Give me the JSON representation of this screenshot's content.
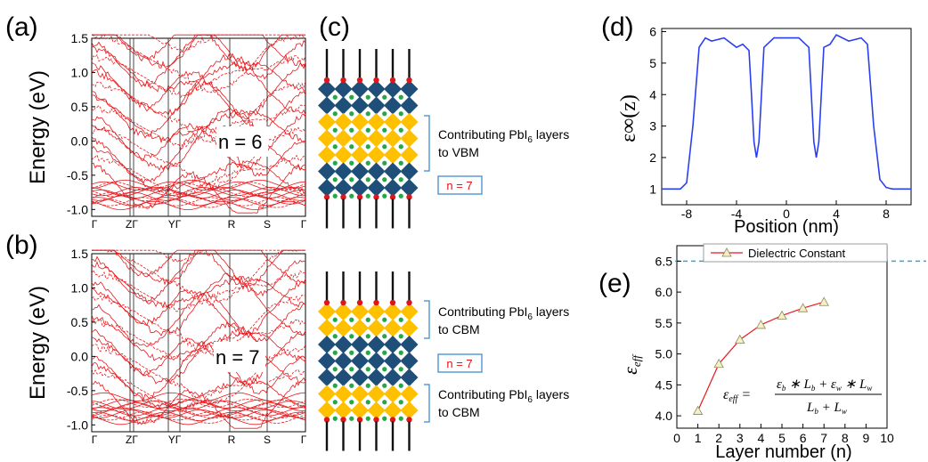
{
  "colors": {
    "band": "#e8191d",
    "blue": "#2a3ff0",
    "navy": "#1f4e79",
    "gold": "#ffc000",
    "green": "#24a847",
    "red_atom": "#e0151a",
    "teal": "#3aa3c8",
    "box": "#5b9bd5"
  },
  "panel_a": {
    "label": "(a)",
    "ylabel": "Energy (eV)",
    "annotation": "n = 6",
    "yticks": [
      "1.5",
      "1.0",
      "0.5",
      "0.0",
      "-0.5",
      "-1.0"
    ],
    "kpoints": [
      "Γ",
      "ZΓ",
      "YΓ",
      "R",
      "S",
      "Γ"
    ]
  },
  "panel_b": {
    "label": "(b)",
    "ylabel": "Energy (eV)",
    "annotation": "n = 7",
    "yticks": [
      "1.5",
      "1.0",
      "0.5",
      "0.0",
      "-0.5",
      "-1.0"
    ],
    "kpoints": [
      "Γ",
      "ZΓ",
      "YΓ",
      "R",
      "S",
      "Γ"
    ]
  },
  "panel_c": {
    "label": "(c)",
    "top": {
      "text": "Contributing PbI",
      "sub": "6",
      "suffix": " layers",
      "line2": "to VBM",
      "n_label": "n = 7"
    },
    "bottom": {
      "text1": "Contributing PbI",
      "sub1": "6",
      "suffix1": " layers",
      "line1b": "to CBM",
      "n_label": "n = 7",
      "text2": "Contributing PbI",
      "sub2": "6",
      "suffix2": " layers",
      "line2b": "to CBM"
    }
  },
  "panel_d": {
    "label": "(d)",
    "ylabel": "ε∞(z)",
    "xlabel": "Position (nm)",
    "xticks": [
      "-8",
      "-4",
      "0",
      "4",
      "8"
    ],
    "yticks": [
      "1",
      "2",
      "3",
      "4",
      "5",
      "6"
    ]
  },
  "panel_e": {
    "label": "(e)",
    "legend": "Dielectric Constant",
    "ylabel": "ε_eff",
    "xlabel": "Layer number (n)",
    "xticks": [
      "0",
      "1",
      "2",
      "3",
      "4",
      "5",
      "6",
      "7",
      "8",
      "9",
      "10"
    ],
    "yticks": [
      "4.0",
      "4.5",
      "5.0",
      "5.5",
      "6.0",
      "6.5"
    ],
    "formula_lhs": "εeff =",
    "formula_num": "εb * Lb + εw * Lw",
    "formula_den": "Lb + Lw"
  },
  "chart_data": [
    {
      "type": "line",
      "title": "",
      "xlabel": "Position (nm)",
      "ylabel": "ε∞(z)",
      "xlim": [
        -10,
        10
      ],
      "ylim": [
        0.5,
        6.1
      ],
      "series": [
        {
          "x": [
            -10,
            -8.5,
            -8,
            -7.5,
            -7,
            -6.5,
            -6,
            -5,
            -4,
            -3.5,
            -3,
            -2.8,
            -2.6,
            -2.4,
            -2.2,
            -2,
            -1.8,
            -1,
            0,
            1,
            1.8,
            2,
            2.2,
            2.4,
            2.6,
            2.8,
            3,
            3.5,
            4,
            5,
            6,
            6.5,
            7,
            7.5,
            8,
            8.5,
            10
          ],
          "y": [
            1,
            1,
            1.2,
            3,
            5.5,
            5.8,
            5.7,
            5.8,
            5.5,
            5.6,
            5.4,
            4,
            2.5,
            2,
            2.5,
            4,
            5.5,
            5.8,
            5.8,
            5.8,
            5.5,
            4,
            2.5,
            2,
            2.5,
            4,
            5.5,
            5.6,
            5.9,
            5.7,
            5.8,
            5.6,
            3,
            1.3,
            1.05,
            1,
            1
          ]
        }
      ]
    },
    {
      "type": "line",
      "title": "",
      "xlabel": "Layer number (n)",
      "ylabel": "ε_eff",
      "xlim": [
        0,
        10
      ],
      "ylim": [
        3.8,
        6.75
      ],
      "reference_line": 6.5,
      "series": [
        {
          "name": "Dielectric Constant",
          "x": [
            1,
            2,
            3,
            4,
            5,
            6,
            7
          ],
          "y": [
            4.08,
            4.84,
            5.23,
            5.47,
            5.62,
            5.74,
            5.84
          ]
        }
      ]
    }
  ]
}
